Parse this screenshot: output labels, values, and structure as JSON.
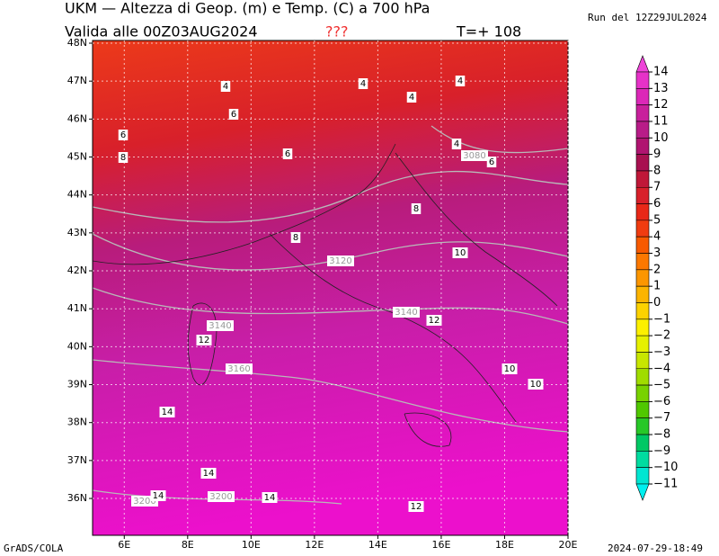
{
  "header": {
    "title": "UKM — Altezza di Geop. (m) e Temp. (C) a 700 hPa",
    "valid": "Valida alle 00Z03AUG2024",
    "unknown": "???",
    "forecast": "T=+ 108",
    "run": "Run del 12Z29JUL2024"
  },
  "map": {
    "lat_ticks": [
      {
        "value": 48,
        "label": "48N"
      },
      {
        "value": 47,
        "label": "47N"
      },
      {
        "value": 46,
        "label": "46N"
      },
      {
        "value": 45,
        "label": "45N"
      },
      {
        "value": 44,
        "label": "44N"
      },
      {
        "value": 43,
        "label": "43N"
      },
      {
        "value": 42,
        "label": "42N"
      },
      {
        "value": 41,
        "label": "41N"
      },
      {
        "value": 40,
        "label": "40N"
      },
      {
        "value": 39,
        "label": "39N"
      },
      {
        "value": 38,
        "label": "38N"
      },
      {
        "value": 37,
        "label": "37N"
      },
      {
        "value": 36,
        "label": "36N"
      }
    ],
    "lon_ticks": [
      {
        "value": 6,
        "label": "6E"
      },
      {
        "value": 8,
        "label": "8E"
      },
      {
        "value": 10,
        "label": "10E"
      },
      {
        "value": 12,
        "label": "12E"
      },
      {
        "value": 14,
        "label": "14E"
      },
      {
        "value": 16,
        "label": "16E"
      },
      {
        "value": 18,
        "label": "18E"
      },
      {
        "value": 20,
        "label": "20E"
      }
    ],
    "contour_labels": [
      "4",
      "4",
      "4",
      "4",
      "6",
      "6",
      "8",
      "6",
      "4",
      "3080",
      "6",
      "8",
      "8",
      "10",
      "3120",
      "3140",
      "12",
      "3140",
      "12",
      "3160",
      "10",
      "10",
      "14",
      "14",
      "3200",
      "14",
      "3200",
      "14",
      "12"
    ]
  },
  "colorbar": {
    "levels": [
      14,
      13,
      12,
      11,
      10,
      9,
      8,
      7,
      6,
      5,
      4,
      3,
      2,
      1,
      0,
      {
        "value": -1,
        "label": "−1"
      },
      {
        "value": -2,
        "label": "−2"
      },
      {
        "value": -3,
        "label": "−3"
      },
      {
        "value": -4,
        "label": "−4"
      },
      {
        "value": -5,
        "label": "−5"
      },
      {
        "value": -6,
        "label": "−6"
      },
      {
        "value": -7,
        "label": "−7"
      },
      {
        "value": -8,
        "label": "−8"
      },
      {
        "value": -9,
        "label": "−9"
      },
      {
        "value": -10,
        "label": "−10"
      },
      {
        "value": -11,
        "label": "−11"
      }
    ],
    "colors": [
      "#ee44d8",
      "#e632c8",
      "#dc28b8",
      "#c8209c",
      "#b81c88",
      "#b01470",
      "#a81050",
      "#c01838",
      "#d8202a",
      "#e82818",
      "#f03c10",
      "#f85a00",
      "#fc7800",
      "#fc9600",
      "#fcb400",
      "#fcd200",
      "#fcf000",
      "#e6f000",
      "#c8e600",
      "#a0dc00",
      "#78d200",
      "#50c800",
      "#28c828",
      "#00c864",
      "#00dca0",
      "#00e6d2",
      "#00f0f0"
    ]
  },
  "footer": {
    "left": "GrADS/COLA",
    "right": "2024-07-29-18:49"
  }
}
